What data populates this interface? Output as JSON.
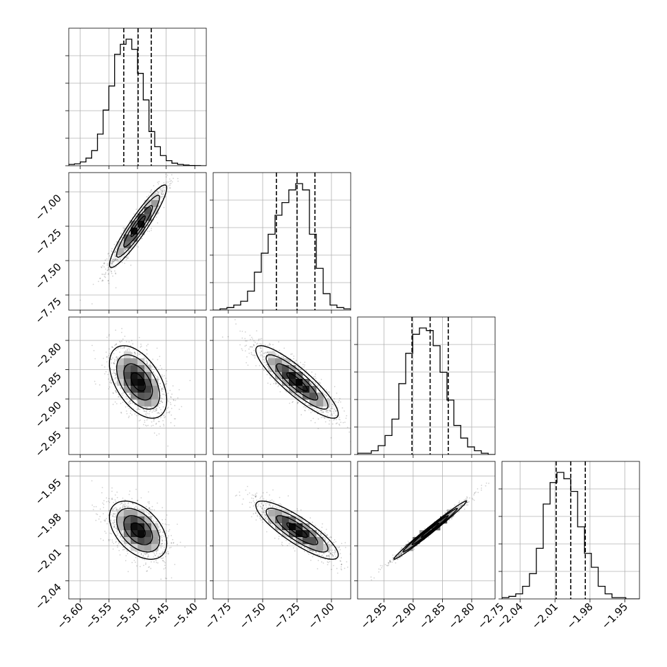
{
  "chart_data": {
    "type": "corner",
    "grid": true,
    "colors": {
      "ink": "#000000",
      "grid": "#b0b0b0",
      "background": "#ffffff"
    },
    "parameters": [
      {
        "range": [
          -5.62,
          -5.38
        ],
        "ticks": [
          -5.6,
          -5.55,
          -5.5,
          -5.45,
          -5.4
        ],
        "tick_labels": [
          "−5.60",
          "−5.55",
          "−5.50",
          "−5.45",
          "−5.40"
        ],
        "quantiles": [
          -5.524,
          -5.499,
          -5.476
        ]
      },
      {
        "range": [
          -7.86,
          -6.86
        ],
        "ticks": [
          -7.75,
          -7.5,
          -7.25,
          -7.0
        ],
        "tick_labels": [
          "−7.75",
          "−7.50",
          "−7.25",
          "−7.00"
        ],
        "quantiles": [
          -7.4,
          -7.25,
          -7.12
        ]
      },
      {
        "range": [
          -2.995,
          -2.76
        ],
        "ticks": [
          -2.95,
          -2.9,
          -2.85,
          -2.8,
          -2.75
        ],
        "tick_labels": [
          "−2.95",
          "−2.90",
          "−2.85",
          "−2.80",
          "−2.75"
        ],
        "quantiles": [
          -2.902,
          -2.871,
          -2.84
        ]
      },
      {
        "range": [
          -2.0555,
          -1.9375
        ],
        "ticks": [
          -2.04,
          -2.01,
          -1.98,
          -1.95
        ],
        "tick_labels": [
          "−2.04",
          "−2.01",
          "−1.98",
          "−1.95"
        ],
        "quantiles": [
          -2.009,
          -1.9965,
          -1.984
        ]
      }
    ],
    "histograms": [
      {
        "parameter": 0,
        "bins": 24,
        "counts": [
          0.01,
          0.015,
          0.03,
          0.06,
          0.12,
          0.25,
          0.44,
          0.63,
          0.88,
          0.96,
          1.0,
          0.92,
          0.73,
          0.52,
          0.27,
          0.15,
          0.08,
          0.04,
          0.02,
          0.01,
          0.005,
          0.002,
          0.001,
          0.0
        ]
      },
      {
        "parameter": 1,
        "bins": 20,
        "counts": [
          0.0,
          0.01,
          0.02,
          0.04,
          0.07,
          0.15,
          0.3,
          0.45,
          0.6,
          0.75,
          0.85,
          0.95,
          1.0,
          0.95,
          0.6,
          0.33,
          0.13,
          0.04,
          0.02,
          0.01
        ]
      },
      {
        "parameter": 2,
        "bins": 20,
        "counts": [
          0.01,
          0.01,
          0.03,
          0.07,
          0.15,
          0.28,
          0.56,
          0.8,
          0.95,
          1.0,
          0.98,
          0.86,
          0.65,
          0.43,
          0.23,
          0.13,
          0.06,
          0.03,
          0.01,
          0.0
        ]
      },
      {
        "parameter": 3,
        "bins": 20,
        "counts": [
          0.01,
          0.02,
          0.04,
          0.1,
          0.2,
          0.4,
          0.75,
          0.92,
          1.0,
          0.95,
          0.85,
          0.57,
          0.36,
          0.25,
          0.1,
          0.04,
          0.01,
          0.01,
          0.0,
          0.0
        ]
      }
    ],
    "joint_panels": [
      {
        "x_param": 0,
        "y_param": 1,
        "mean": [
          -5.499,
          -7.25
        ],
        "std": [
          0.025,
          0.15
        ],
        "correlation": 0.93
      },
      {
        "x_param": 0,
        "y_param": 2,
        "mean": [
          -5.499,
          -2.871
        ],
        "std": [
          0.025,
          0.031
        ],
        "correlation": -0.5
      },
      {
        "x_param": 1,
        "y_param": 2,
        "mean": [
          -7.25,
          -2.871
        ],
        "std": [
          0.15,
          0.031
        ],
        "correlation": -0.88
      },
      {
        "x_param": 0,
        "y_param": 3,
        "mean": [
          -5.499,
          -1.9965
        ],
        "std": [
          0.025,
          0.0125
        ],
        "correlation": -0.45
      },
      {
        "x_param": 1,
        "y_param": 3,
        "mean": [
          -7.25,
          -1.9965
        ],
        "std": [
          0.15,
          0.0125
        ],
        "correlation": -0.85
      },
      {
        "x_param": 2,
        "y_param": 3,
        "mean": [
          -2.871,
          -1.9965
        ],
        "std": [
          0.031,
          0.0125
        ],
        "correlation": 0.99
      }
    ],
    "contour_levels_sigma": [
      0.5,
      1.0,
      1.5,
      2.0
    ]
  }
}
